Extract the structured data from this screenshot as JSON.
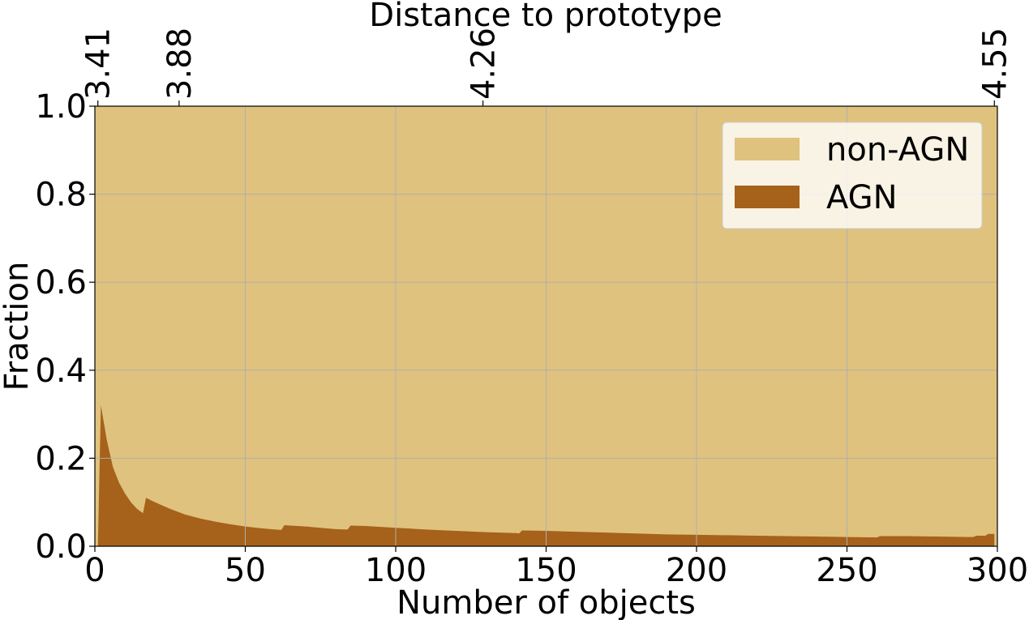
{
  "chart_data": {
    "type": "area",
    "stacked": true,
    "xlabel": "Number of objects",
    "ylabel": "Fraction",
    "top_xlabel": "Distance to prototype",
    "xlim": [
      0,
      300
    ],
    "ylim": [
      0,
      1.0
    ],
    "x_ticks": [
      "0",
      "50",
      "100",
      "150",
      "200",
      "250",
      "300"
    ],
    "y_ticks": [
      "0.0",
      "0.2",
      "0.4",
      "0.6",
      "0.8",
      "1.0"
    ],
    "top_ticks": [
      {
        "label": "3.41",
        "at_objects": 1
      },
      {
        "label": "3.88",
        "at_objects": 28
      },
      {
        "label": "4.26",
        "at_objects": 129
      },
      {
        "label": "4.55",
        "at_objects": 299
      }
    ],
    "grid": true,
    "legend_position": "top-right",
    "series": [
      {
        "name": "non-AGN",
        "color": "#dfc27d",
        "values": "1 - AGN"
      },
      {
        "name": "AGN",
        "color": "#a6611a",
        "x": [
          1,
          2,
          4,
          6,
          8,
          10,
          12,
          14,
          16,
          17,
          20,
          25,
          30,
          35,
          40,
          45,
          50,
          55,
          60,
          62,
          63,
          70,
          75,
          80,
          84,
          85,
          90,
          100,
          110,
          120,
          130,
          140,
          141,
          142,
          150,
          160,
          170,
          180,
          190,
          200,
          210,
          220,
          230,
          240,
          250,
          260,
          261,
          270,
          280,
          290,
          292,
          293,
          296,
          297,
          299
        ],
        "values": [
          0.0,
          0.32,
          0.24,
          0.18,
          0.145,
          0.12,
          0.1,
          0.085,
          0.075,
          0.11,
          0.1,
          0.085,
          0.072,
          0.063,
          0.056,
          0.05,
          0.045,
          0.041,
          0.038,
          0.037,
          0.048,
          0.045,
          0.042,
          0.039,
          0.038,
          0.047,
          0.046,
          0.042,
          0.038,
          0.035,
          0.032,
          0.03,
          0.029,
          0.036,
          0.035,
          0.033,
          0.031,
          0.029,
          0.027,
          0.026,
          0.025,
          0.024,
          0.023,
          0.022,
          0.021,
          0.02,
          0.023,
          0.023,
          0.022,
          0.021,
          0.021,
          0.024,
          0.024,
          0.028,
          0.028
        ]
      }
    ]
  }
}
